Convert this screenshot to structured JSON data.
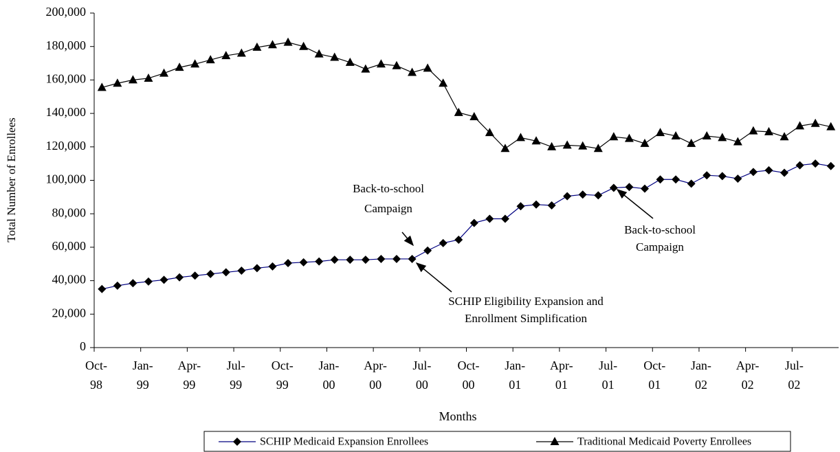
{
  "chart_data": {
    "type": "line",
    "y_label": "Total Number of Enrollees",
    "x_label": "Months",
    "categories": [
      "Oct-98",
      null,
      null,
      "Jan-99",
      null,
      null,
      "Apr-99",
      null,
      null,
      "Jul-99",
      null,
      null,
      "Oct-99",
      null,
      null,
      "Jan-00",
      null,
      null,
      "Apr-00",
      null,
      null,
      "Jul-00",
      null,
      null,
      "Oct-00",
      null,
      null,
      "Jan-01",
      null,
      null,
      "Apr-01",
      null,
      null,
      "Jul-01",
      null,
      null,
      "Oct-01",
      null,
      null,
      "Jan-02",
      null,
      null,
      "Apr-02",
      null,
      null,
      "Jul-02",
      null,
      null
    ],
    "series": [
      {
        "name": "SCHIP Medicaid Expansion Enrollees",
        "color": "#000080",
        "marker": "diamond",
        "values": [
          35000,
          37000,
          38500,
          39500,
          40500,
          42000,
          43000,
          44000,
          45000,
          46000,
          47500,
          48500,
          50500,
          51000,
          51500,
          52500,
          52500,
          52500,
          53000,
          53000,
          53000,
          58000,
          62500,
          64500,
          74500,
          77000,
          77000,
          84500,
          85500,
          85000,
          90500,
          91500,
          91000,
          95500,
          96000,
          95000,
          100500,
          100500,
          98000,
          103000,
          102500,
          101000,
          105000,
          106000,
          104500,
          109000,
          110000,
          108500
        ]
      },
      {
        "name": "Traditional Medicaid Poverty Enrollees",
        "color": "#000000",
        "marker": "triangle",
        "values": [
          155500,
          158000,
          160000,
          161000,
          164000,
          167500,
          169500,
          172000,
          174500,
          176000,
          179500,
          181000,
          182500,
          180000,
          175500,
          173500,
          170500,
          166500,
          169500,
          168500,
          164500,
          167000,
          158000,
          140500,
          138000,
          128500,
          119000,
          125500,
          123500,
          120000,
          121000,
          120500,
          119000,
          126000,
          125000,
          122000,
          128500,
          126500,
          122000,
          126500,
          125500,
          123000,
          129500,
          129000,
          126000,
          132500,
          134000,
          132000
        ]
      }
    ],
    "ylim": [
      0,
      200000
    ],
    "yticks": [
      0,
      {
        "value": 20000,
        "label": "20,000"
      },
      {
        "value": 40000,
        "label": "40,000"
      },
      {
        "value": 60000,
        "label": "60,000"
      },
      {
        "value": 80000,
        "label": "80,000"
      },
      {
        "value": 100000,
        "label": "100,000"
      },
      {
        "value": 120000,
        "label": "120,000"
      },
      {
        "value": 140000,
        "label": "140,000"
      },
      {
        "value": 160000,
        "label": "160,000"
      },
      {
        "value": 180000,
        "label": "180,000"
      },
      {
        "value": 200000,
        "label": "200,000"
      }
    ],
    "annotations": [
      {
        "lines": [
          "Back-to-school",
          "Campaign"
        ]
      },
      {
        "lines": [
          "SCHIP Eligibility Expansion and",
          "Enrollment Simplification"
        ]
      },
      {
        "lines": [
          "Back-to-school",
          "Campaign"
        ]
      }
    ],
    "legend": "bottom"
  }
}
